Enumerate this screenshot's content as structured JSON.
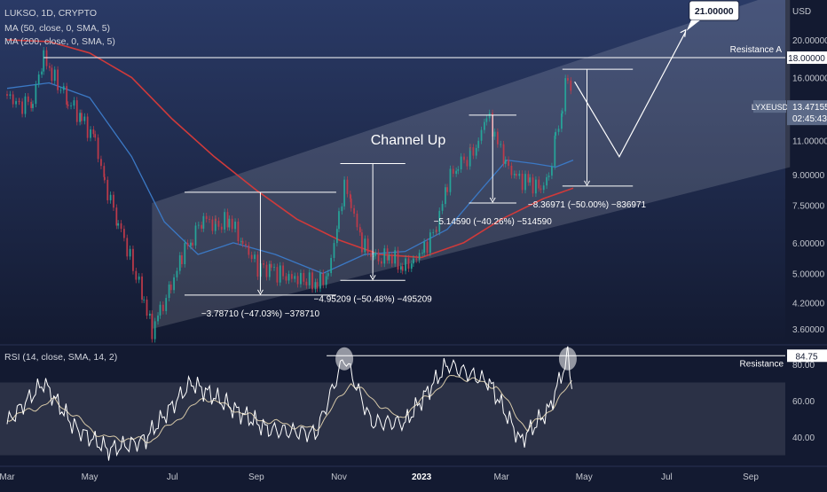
{
  "header": {
    "title": "LUKSO, 1D, CRYPTO",
    "ma50": "MA (50, close, 0, SMA, 5)",
    "ma200": "MA (200, close, 0, SMA, 5)",
    "rsi_label": "RSI (14, close, SMA, 14, 2)"
  },
  "chart_data": [
    {
      "type": "line",
      "name": "price",
      "currency": "USD",
      "symbol": "LYXEUSD",
      "last_price": "13.47155",
      "countdown": "02:45:43",
      "price_ticks": [
        "20.00000",
        "16.00000",
        "11.00000",
        "9.00000",
        "7.50000",
        "6.00000",
        "5.00000",
        "4.20000",
        "3.60000"
      ],
      "price_tick_values": [
        20.0,
        16.0,
        11.0,
        9.0,
        7.5,
        6.0,
        5.0,
        4.2,
        3.6
      ],
      "ylim": [
        3.3,
        24.0
      ],
      "scale": "log",
      "x_ticks": [
        "Mar",
        "May",
        "Jul",
        "Sep",
        "Nov",
        "2023",
        "Mar",
        "May",
        "Jul",
        "Sep"
      ],
      "x_tick_dates": [
        "2022-03-01",
        "2022-05-01",
        "2022-07-01",
        "2022-09-01",
        "2022-11-01",
        "2023-01-01",
        "2023-03-01",
        "2023-05-01",
        "2023-07-01",
        "2023-09-01"
      ],
      "xlim": [
        "2022-03-01",
        "2023-09-30"
      ],
      "price_path": [
        {
          "date": "2022-03-01",
          "v": 14.5
        },
        {
          "date": "2022-03-10",
          "v": 13.5
        },
        {
          "date": "2022-03-20",
          "v": 14.0
        },
        {
          "date": "2022-03-28",
          "v": 18.2
        },
        {
          "date": "2022-04-03",
          "v": 16.3
        },
        {
          "date": "2022-04-15",
          "v": 14.0
        },
        {
          "date": "2022-04-25",
          "v": 12.5
        },
        {
          "date": "2022-05-05",
          "v": 11.0
        },
        {
          "date": "2022-05-12",
          "v": 8.5
        },
        {
          "date": "2022-05-22",
          "v": 6.8
        },
        {
          "date": "2022-06-02",
          "v": 5.2
        },
        {
          "date": "2022-06-10",
          "v": 4.3
        },
        {
          "date": "2022-06-16",
          "v": 3.55
        },
        {
          "date": "2022-06-22",
          "v": 4.0
        },
        {
          "date": "2022-06-30",
          "v": 4.6
        },
        {
          "date": "2022-07-08",
          "v": 5.6
        },
        {
          "date": "2022-07-16",
          "v": 6.2
        },
        {
          "date": "2022-07-24",
          "v": 7.0
        },
        {
          "date": "2022-08-02",
          "v": 6.6
        },
        {
          "date": "2022-08-12",
          "v": 6.9
        },
        {
          "date": "2022-08-22",
          "v": 6.0
        },
        {
          "date": "2022-09-02",
          "v": 5.2
        },
        {
          "date": "2022-09-12",
          "v": 5.1
        },
        {
          "date": "2022-09-25",
          "v": 4.9
        },
        {
          "date": "2022-10-08",
          "v": 4.8
        },
        {
          "date": "2022-10-16",
          "v": 4.7
        },
        {
          "date": "2022-10-24",
          "v": 5.0
        },
        {
          "date": "2022-11-01",
          "v": 7.0
        },
        {
          "date": "2022-11-05",
          "v": 8.6
        },
        {
          "date": "2022-11-10",
          "v": 7.5
        },
        {
          "date": "2022-11-18",
          "v": 6.0
        },
        {
          "date": "2022-11-28",
          "v": 5.4
        },
        {
          "date": "2022-12-08",
          "v": 5.6
        },
        {
          "date": "2022-12-18",
          "v": 5.2
        },
        {
          "date": "2022-12-26",
          "v": 5.4
        },
        {
          "date": "2023-01-03",
          "v": 5.8
        },
        {
          "date": "2023-01-12",
          "v": 6.6
        },
        {
          "date": "2023-01-20",
          "v": 8.6
        },
        {
          "date": "2023-01-28",
          "v": 9.6
        },
        {
          "date": "2023-02-06",
          "v": 10.0
        },
        {
          "date": "2023-02-12",
          "v": 11.0
        },
        {
          "date": "2023-02-18",
          "v": 12.8
        },
        {
          "date": "2023-02-24",
          "v": 11.5
        },
        {
          "date": "2023-03-04",
          "v": 9.6
        },
        {
          "date": "2023-03-12",
          "v": 8.8
        },
        {
          "date": "2023-03-22",
          "v": 8.6
        },
        {
          "date": "2023-03-30",
          "v": 8.2
        },
        {
          "date": "2023-04-05",
          "v": 9.0
        },
        {
          "date": "2023-04-10",
          "v": 11.0
        },
        {
          "date": "2023-04-15",
          "v": 13.6
        },
        {
          "date": "2023-04-19",
          "v": 16.4
        },
        {
          "date": "2023-04-23",
          "v": 13.47
        }
      ],
      "ma50_path": [
        {
          "date": "2022-03-01",
          "v": 15.0
        },
        {
          "date": "2022-04-01",
          "v": 15.5
        },
        {
          "date": "2022-05-01",
          "v": 14.2
        },
        {
          "date": "2022-06-01",
          "v": 10.0
        },
        {
          "date": "2022-06-25",
          "v": 6.8
        },
        {
          "date": "2022-07-20",
          "v": 5.6
        },
        {
          "date": "2022-08-15",
          "v": 6.0
        },
        {
          "date": "2022-09-15",
          "v": 5.6
        },
        {
          "date": "2022-10-20",
          "v": 5.0
        },
        {
          "date": "2022-11-20",
          "v": 5.6
        },
        {
          "date": "2022-12-20",
          "v": 5.7
        },
        {
          "date": "2023-01-20",
          "v": 6.5
        },
        {
          "date": "2023-02-15",
          "v": 8.3
        },
        {
          "date": "2023-03-05",
          "v": 9.8
        },
        {
          "date": "2023-03-25",
          "v": 9.6
        },
        {
          "date": "2023-04-10",
          "v": 9.4
        },
        {
          "date": "2023-04-23",
          "v": 9.8
        }
      ],
      "ma200_path": [
        {
          "date": "2022-03-01",
          "v": 20.0
        },
        {
          "date": "2022-04-01",
          "v": 19.8
        },
        {
          "date": "2022-05-01",
          "v": 18.5
        },
        {
          "date": "2022-06-01",
          "v": 16.0
        },
        {
          "date": "2022-07-01",
          "v": 12.5
        },
        {
          "date": "2022-08-01",
          "v": 10.0
        },
        {
          "date": "2022-09-01",
          "v": 8.2
        },
        {
          "date": "2022-10-01",
          "v": 6.9
        },
        {
          "date": "2022-11-01",
          "v": 6.1
        },
        {
          "date": "2022-12-01",
          "v": 5.6
        },
        {
          "date": "2023-01-01",
          "v": 5.5
        },
        {
          "date": "2023-02-01",
          "v": 6.0
        },
        {
          "date": "2023-03-01",
          "v": 6.9
        },
        {
          "date": "2023-04-01",
          "v": 7.8
        },
        {
          "date": "2023-04-23",
          "v": 8.3
        }
      ],
      "channel": {
        "name": "Channel Up",
        "lower": [
          {
            "date": "2022-06-16",
            "v": 3.6
          },
          {
            "date": "2023-09-30",
            "v": 9.4
          }
        ],
        "upper": [
          {
            "date": "2022-06-16",
            "v": 7.6
          },
          {
            "date": "2023-09-30",
            "v": 27.0
          }
        ]
      },
      "resistance": {
        "label": "Resistance A",
        "value": 18.0,
        "value_label": "18.00000"
      },
      "target": {
        "value": 21.0,
        "label": "21.00000"
      },
      "projection": [
        {
          "date": "2023-04-24",
          "v": 15.6
        },
        {
          "date": "2023-05-27",
          "v": 10.0
        },
        {
          "date": "2023-07-15",
          "v": 21.0
        }
      ],
      "measurements": [
        {
          "text": "−3.78710 (−47.03%) −378710",
          "from_date": "2022-07-10",
          "to_date": "2022-10-30",
          "top": 8.1,
          "bottom": 4.4
        },
        {
          "text": "−4.95209 (−50.48%) −495209",
          "from_date": "2022-11-02",
          "to_date": "2022-12-20",
          "top": 9.6,
          "bottom": 4.8
        },
        {
          "text": "−5.14590 (−40.26%) −514590",
          "from_date": "2023-02-05",
          "to_date": "2023-03-12",
          "top": 12.8,
          "bottom": 7.6
        },
        {
          "text": "−8.36971 (−50.00%) −836971",
          "from_date": "2023-04-15",
          "to_date": "2023-06-06",
          "top": 16.8,
          "bottom": 8.4
        }
      ]
    },
    {
      "type": "line",
      "name": "rsi",
      "y_ticks": [
        "80.00",
        "60.00",
        "40.00"
      ],
      "y_tick_values": [
        80,
        60,
        40
      ],
      "ylim": [
        30,
        90
      ],
      "band": [
        30,
        70
      ],
      "last_value": "84.75",
      "resistance": {
        "label": "Resistance",
        "value": 84.75
      },
      "circled_peaks": [
        {
          "date": "2022-11-05",
          "v": 84
        },
        {
          "date": "2023-04-19",
          "v": 84
        }
      ],
      "rsi_path": [
        {
          "date": "2022-03-01",
          "v": 48
        },
        {
          "date": "2022-03-28",
          "v": 70
        },
        {
          "date": "2022-04-20",
          "v": 45
        },
        {
          "date": "2022-05-15",
          "v": 33
        },
        {
          "date": "2022-06-10",
          "v": 38
        },
        {
          "date": "2022-07-15",
          "v": 70
        },
        {
          "date": "2022-08-10",
          "v": 58
        },
        {
          "date": "2022-09-10",
          "v": 44
        },
        {
          "date": "2022-10-15",
          "v": 42
        },
        {
          "date": "2022-11-05",
          "v": 84
        },
        {
          "date": "2022-11-25",
          "v": 48
        },
        {
          "date": "2022-12-20",
          "v": 48
        },
        {
          "date": "2023-01-20",
          "v": 80
        },
        {
          "date": "2023-02-20",
          "v": 70
        },
        {
          "date": "2023-03-15",
          "v": 38
        },
        {
          "date": "2023-04-05",
          "v": 55
        },
        {
          "date": "2023-04-19",
          "v": 84
        },
        {
          "date": "2023-04-23",
          "v": 63
        }
      ],
      "rsi_ma_path": [
        {
          "date": "2022-03-01",
          "v": 50
        },
        {
          "date": "2022-04-05",
          "v": 60
        },
        {
          "date": "2022-05-10",
          "v": 40
        },
        {
          "date": "2022-06-15",
          "v": 38
        },
        {
          "date": "2022-07-25",
          "v": 62
        },
        {
          "date": "2022-09-01",
          "v": 50
        },
        {
          "date": "2022-10-15",
          "v": 44
        },
        {
          "date": "2022-11-10",
          "v": 70
        },
        {
          "date": "2022-12-15",
          "v": 50
        },
        {
          "date": "2023-01-25",
          "v": 74
        },
        {
          "date": "2023-02-25",
          "v": 68
        },
        {
          "date": "2023-03-20",
          "v": 44
        },
        {
          "date": "2023-04-10",
          "v": 58
        },
        {
          "date": "2023-04-23",
          "v": 72
        }
      ]
    }
  ],
  "colors": {
    "background": "#131a31",
    "price": "#c23b4a",
    "ma50": "#3b78c4",
    "ma200": "#d03a3a",
    "channel_fill": "#ffffff",
    "rsi": "#ffffff",
    "rsi_ma": "#d6c8a8",
    "label_box": "#5c6a88"
  }
}
